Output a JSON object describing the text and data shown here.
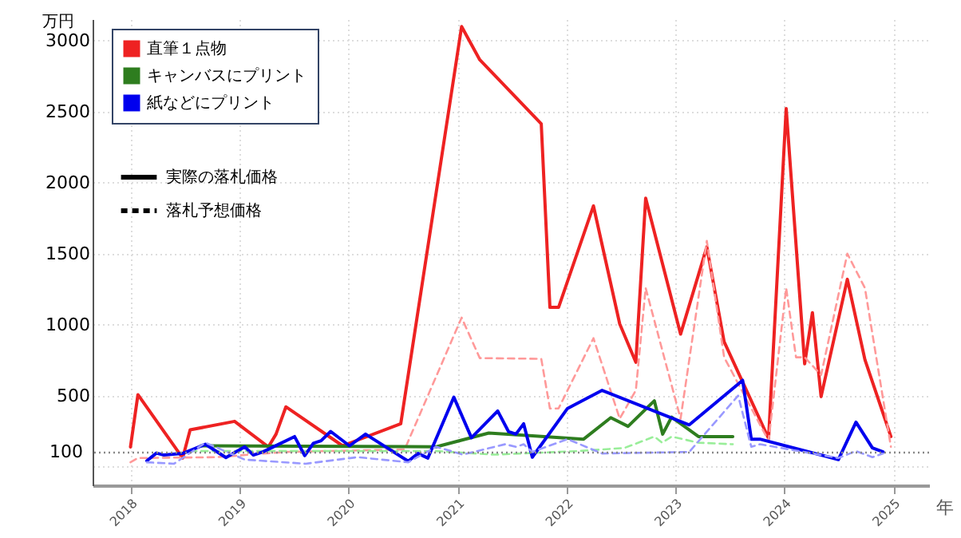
{
  "chart_data": {
    "type": "line",
    "xlabel": "年",
    "ylabel": "万円",
    "xlim": [
      "2017-08-27",
      "2025-05-01"
    ],
    "ylim": [
      -130,
      3150
    ],
    "xticks": [
      {
        "value": "2018",
        "label": "2018"
      },
      {
        "value": "2019",
        "label": "2019"
      },
      {
        "value": "2020",
        "label": "2020"
      },
      {
        "value": "2021",
        "label": "2021"
      },
      {
        "value": "2022",
        "label": "2022"
      },
      {
        "value": "2023",
        "label": "2023"
      },
      {
        "value": "2024",
        "label": "2024"
      },
      {
        "value": "2025",
        "label": "2025"
      }
    ],
    "yticks": [
      {
        "value": 0,
        "label": null
      },
      500,
      1000,
      1500,
      2000,
      2500,
      3000
    ],
    "grid": true,
    "legend": "top left",
    "annotations": [
      "実際の落札価格",
      "落札予想価格"
    ],
    "ref_lines": [
      {
        "axis": "y",
        "value": 100,
        "label": "100",
        "color": "#888888",
        "line_style": "dotted"
      }
    ],
    "series": [
      {
        "name": "直筆１点物",
        "color": "#ee2222",
        "line_style": "solid",
        "x": [
          "2018-01-01",
          "2018-01-26",
          "2018-06-25",
          "2018-07-20",
          "2018-12-16",
          "2019-04-08",
          "2019-05-04",
          "2019-06-06",
          "2019-12-13",
          "2020-06-25",
          "2021-01-15",
          "2021-03-17",
          "2021-10-09",
          "2021-11-07",
          "2021-12-06",
          "2022-04-02",
          "2022-06-29",
          "2022-08-22",
          "2022-09-24",
          "2023-01-19",
          "2023-04-17",
          "2023-06-14",
          "2023-11-10",
          "2024-01-08",
          "2024-03-10",
          "2024-04-05",
          "2024-05-04",
          "2024-07-31",
          "2024-09-28",
          "2024-12-24"
        ],
        "values": [
          140,
          508,
          62,
          260,
          320,
          140,
          230,
          422,
          148,
          303,
          3098,
          2864,
          2413,
          1122,
          1122,
          1836,
          1006,
          736,
          1890,
          934,
          1547,
          880,
          200,
          2521,
          725,
          1085,
          494,
          1320,
          754,
          213
        ]
      },
      {
        "color": "#ff9999",
        "line_style": "dashed",
        "x": [
          "2018-01-01",
          "2018-01-26",
          "2018-10-15",
          "2019-06-06",
          "2020-07-08",
          "2021-01-15",
          "2021-03-17",
          "2021-10-09",
          "2021-11-07",
          "2021-12-06",
          "2022-04-02",
          "2022-06-29",
          "2022-08-22",
          "2022-09-24",
          "2023-01-19",
          "2023-04-17",
          "2023-06-14",
          "2023-11-10",
          "2024-01-08",
          "2024-02-10",
          "2024-03-10",
          "2024-05-04",
          "2024-07-31",
          "2024-09-28",
          "2024-12-24"
        ],
        "values": [
          32,
          62,
          68,
          105,
          122,
          1050,
          765,
          760,
          411,
          411,
          905,
          339,
          538,
          1258,
          339,
          1590,
          771,
          184,
          1258,
          771,
          771,
          646,
          1500,
          1258,
          141
        ]
      },
      {
        "name": "キャンバスにプリント",
        "color": "#2e7d1f",
        "line_style": "solid",
        "x": [
          "2018-08-25",
          "2020-10-22",
          "2021-04-16",
          "2021-07-31",
          "2022-02-28",
          "2022-05-30",
          "2022-07-27",
          "2022-10-23",
          "2022-11-20",
          "2022-12-20",
          "2023-03-20",
          "2023-07-13"
        ],
        "values": [
          148,
          141,
          238,
          224,
          195,
          346,
          285,
          465,
          230,
          350,
          213,
          213
        ]
      },
      {
        "color": "#99ee99",
        "line_style": "dashed",
        "x": [
          "2018-07-20",
          "2020-10-22",
          "2021-05-05",
          "2022-02-10",
          "2022-07-15",
          "2022-10-23",
          "2022-11-18",
          "2022-12-20",
          "2023-03-20",
          "2023-07-13"
        ],
        "values": [
          111,
          111,
          86,
          111,
          133,
          213,
          170,
          213,
          170,
          159
        ]
      },
      {
        "name": "紙などにプリント",
        "color": "#0000ee",
        "line_style": "solid",
        "x": [
          "2018-02-25",
          "2018-03-29",
          "2018-04-23",
          "2018-06-25",
          "2018-09-09",
          "2018-11-17",
          "2019-01-19",
          "2019-02-17",
          "2019-03-21",
          "2019-07-05",
          "2019-08-08",
          "2019-09-06",
          "2019-10-02",
          "2019-11-03",
          "2020-01-05",
          "2020-02-28",
          "2020-07-20",
          "2020-08-22",
          "2020-09-24",
          "2020-12-20",
          "2021-02-17",
          "2021-05-16",
          "2021-06-21",
          "2021-07-16",
          "2021-08-11",
          "2021-09-09",
          "2022-01-05",
          "2022-05-01",
          "2023-02-17",
          "2023-08-15",
          "2023-09-13",
          "2023-10-12",
          "2024-07-01",
          "2024-08-29",
          "2024-10-23",
          "2024-11-28"
        ],
        "values": [
          43,
          97,
          83,
          94,
          159,
          65,
          141,
          83,
          105,
          213,
          79,
          166,
          184,
          249,
          148,
          230,
          40,
          94,
          62,
          490,
          205,
          393,
          249,
          230,
          303,
          68,
          411,
          538,
          295,
          609,
          195,
          195,
          51,
          314,
          133,
          105
        ]
      },
      {
        "color": "#9999ff",
        "line_style": "dashed",
        "x": [
          "2018-02-25",
          "2018-05-27",
          "2018-09-09",
          "2019-01-19",
          "2019-08-11",
          "2020-02-02",
          "2020-07-20",
          "2020-10-22",
          "2021-01-19",
          "2021-06-10",
          "2021-07-16",
          "2021-08-11",
          "2021-09-09",
          "2022-01-05",
          "2022-05-01",
          "2023-02-17",
          "2023-07-31",
          "2023-09-13",
          "2023-10-12",
          "2024-07-01",
          "2024-08-29",
          "2024-10-23",
          "2024-11-28"
        ],
        "values": [
          32,
          22,
          170,
          51,
          22,
          68,
          32,
          141,
          86,
          159,
          141,
          159,
          105,
          195,
          94,
          105,
          501,
          141,
          159,
          62,
          111,
          68,
          94
        ]
      }
    ]
  }
}
